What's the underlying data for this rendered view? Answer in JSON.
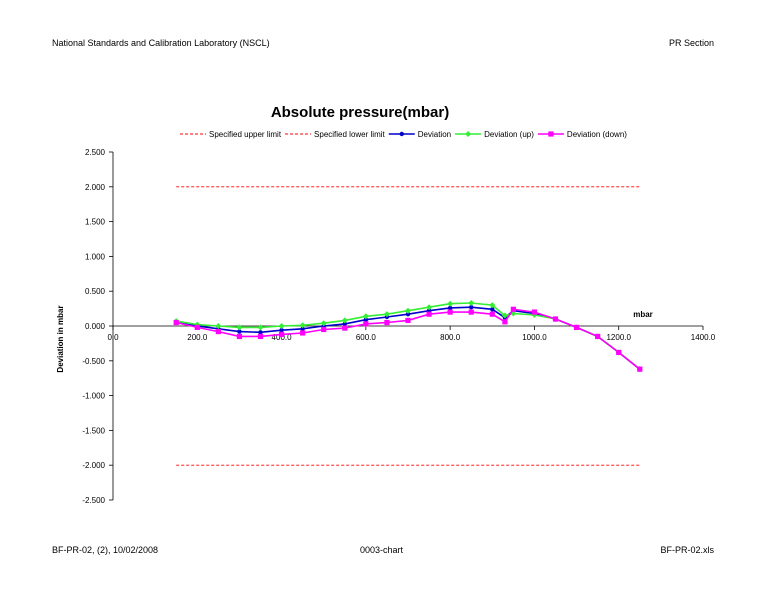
{
  "page": {
    "header_left": "National Standards and Calibration Laboratory (NSCL)",
    "header_right": "PR Section",
    "footer_left": "BF-PR-02, (2), 10/02/2008",
    "footer_center": "0003-chart",
    "footer_right": "BF-PR-02.xls"
  },
  "chart_data": {
    "type": "line",
    "title": "Absolute pressure(mbar)",
    "xlabel": "mbar",
    "ylabel": "Deviation in mbar",
    "xlim": [
      0,
      1400
    ],
    "ylim": [
      -2.5,
      2.5
    ],
    "x_ticks": [
      "0.0",
      "200.0",
      "400.0",
      "600.0",
      "800.0",
      "1000.0",
      "1200.0",
      "1400.0"
    ],
    "y_ticks": [
      "2.500",
      "2.000",
      "1.500",
      "1.000",
      "0.500",
      "0.000",
      "-0.500",
      "-1.000",
      "-1.500",
      "-2.000",
      "-2.500"
    ],
    "grid": false,
    "legend_position": "top",
    "series": [
      {
        "name": "Specified upper limit",
        "color": "#ff0000",
        "style": "dashed",
        "marker": "none",
        "x": [
          150,
          1250
        ],
        "y": [
          2.0,
          2.0
        ]
      },
      {
        "name": "Specified lower limit",
        "color": "#ff0000",
        "style": "dashed",
        "marker": "none",
        "x": [
          150,
          1250
        ],
        "y": [
          -2.0,
          -2.0
        ]
      },
      {
        "name": "Deviation",
        "color": "#0000cc",
        "style": "solid",
        "marker": "circle",
        "x": [
          150,
          200,
          250,
          300,
          350,
          400,
          450,
          500,
          550,
          600,
          650,
          700,
          750,
          800,
          850,
          900,
          930,
          950,
          1000,
          1050,
          1100,
          1150,
          1200,
          1250
        ],
        "y": [
          0.06,
          0.0,
          -0.04,
          -0.08,
          -0.09,
          -0.06,
          -0.04,
          0.0,
          0.03,
          0.09,
          0.13,
          0.17,
          0.22,
          0.26,
          0.27,
          0.24,
          0.12,
          0.22,
          0.18,
          0.1,
          -0.02,
          -0.15,
          -0.38,
          -0.62
        ]
      },
      {
        "name": "Deviation (up)",
        "color": "#33ee33",
        "style": "solid",
        "marker": "diamond",
        "x": [
          150,
          200,
          250,
          300,
          350,
          400,
          450,
          500,
          550,
          600,
          650,
          700,
          750,
          800,
          850,
          900,
          930,
          950,
          1000,
          1050,
          1100,
          1150,
          1200,
          1250
        ],
        "y": [
          0.07,
          0.02,
          0.0,
          -0.02,
          -0.02,
          0.0,
          0.01,
          0.04,
          0.08,
          0.14,
          0.17,
          0.22,
          0.27,
          0.32,
          0.33,
          0.3,
          0.15,
          0.18,
          0.16,
          0.1,
          -0.02,
          -0.15,
          -0.38,
          -0.62
        ]
      },
      {
        "name": "Deviation (down)",
        "color": "#ff00ff",
        "style": "solid",
        "marker": "square",
        "x": [
          150,
          200,
          250,
          300,
          350,
          400,
          450,
          500,
          550,
          600,
          650,
          700,
          750,
          800,
          850,
          900,
          930,
          950,
          1000,
          1050,
          1100,
          1150,
          1200,
          1250
        ],
        "y": [
          0.05,
          -0.02,
          -0.08,
          -0.15,
          -0.15,
          -0.12,
          -0.1,
          -0.05,
          -0.03,
          0.03,
          0.05,
          0.08,
          0.17,
          0.2,
          0.2,
          0.17,
          0.06,
          0.24,
          0.2,
          0.1,
          -0.02,
          -0.15,
          -0.38,
          -0.62
        ]
      }
    ]
  }
}
